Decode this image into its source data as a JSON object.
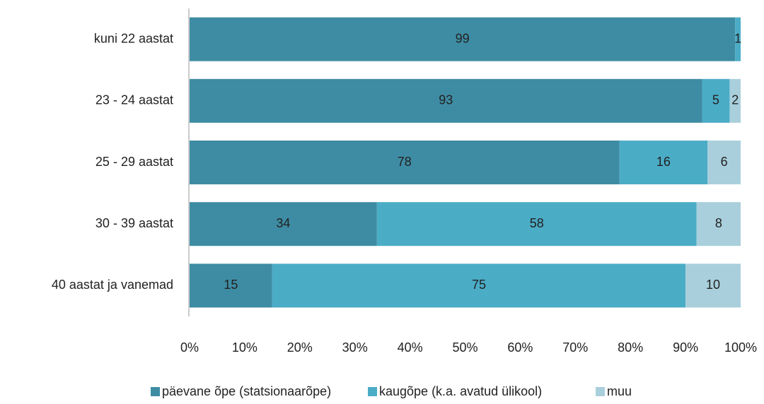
{
  "chart_data": {
    "type": "stacked_bar_horizontal",
    "categories": [
      "kuni 22 aastat",
      "23 - 24 aastat",
      "25 - 29 aastat",
      "30 - 39 aastat",
      "40 aastat ja vanemad"
    ],
    "series": [
      {
        "name": "päevane õpe (statsionaarõpe)",
        "color": "#3e8ca3",
        "values": [
          99,
          93,
          78,
          34,
          15
        ]
      },
      {
        "name": "kaugõpe (k.a. avatud ülikool)",
        "color": "#4bacc6",
        "values": [
          1,
          5,
          16,
          58,
          75
        ]
      },
      {
        "name": "muu",
        "color": "#a9cfdc",
        "values": [
          null,
          2,
          6,
          8,
          10
        ]
      }
    ],
    "xlim": [
      0,
      100
    ],
    "xticks": [
      {
        "value": 0,
        "label": "0%"
      },
      {
        "value": 10,
        "label": "10%"
      },
      {
        "value": 20,
        "label": "20%"
      },
      {
        "value": 30,
        "label": "30%"
      },
      {
        "value": 40,
        "label": "40%"
      },
      {
        "value": 50,
        "label": "50%"
      },
      {
        "value": 60,
        "label": "60%"
      },
      {
        "value": 70,
        "label": "70%"
      },
      {
        "value": 80,
        "label": "80%"
      },
      {
        "value": 90,
        "label": "90%"
      },
      {
        "value": 100,
        "label": "100%"
      }
    ],
    "legend": "bottom"
  }
}
